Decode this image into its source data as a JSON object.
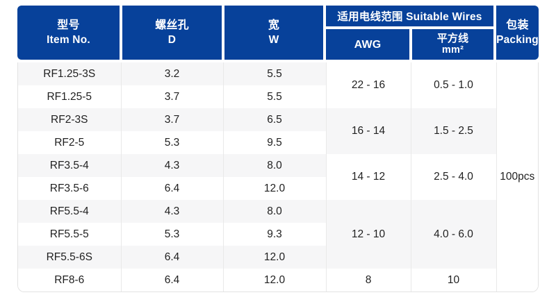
{
  "colors": {
    "header_bg": "#07419a",
    "header_text": "#ffffff",
    "row_shaded": "#f6f6f7",
    "row_plain": "#ffffff",
    "body_text": "#1f1f1f",
    "grid_line": "#e9e9e9",
    "outer_border": "#e2e2e2"
  },
  "header": {
    "item": {
      "zh": "型号",
      "en": "Item No."
    },
    "screw_hole": {
      "zh": "螺丝孔",
      "en": "D"
    },
    "width": {
      "zh": "宽",
      "en": "W"
    },
    "suitable_wires_group": "适用电线范围 Suitable Wires",
    "awg": "AWG",
    "sq_wire": {
      "zh": "平方线",
      "en": "mm²"
    },
    "packing": {
      "zh": "包装",
      "en": "Packing"
    }
  },
  "rows": [
    {
      "item": "RF1.25-3S",
      "d": "3.2",
      "w": "5.5"
    },
    {
      "item": "RF1.25-5",
      "d": "3.7",
      "w": "5.5"
    },
    {
      "item": "RF2-3S",
      "d": "3.7",
      "w": "6.5"
    },
    {
      "item": "RF2-5",
      "d": "5.3",
      "w": "9.5"
    },
    {
      "item": "RF3.5-4",
      "d": "4.3",
      "w": "8.0"
    },
    {
      "item": "RF3.5-6",
      "d": "6.4",
      "w": "12.0"
    },
    {
      "item": "RF5.5-4",
      "d": "4.3",
      "w": "8.0"
    },
    {
      "item": "RF5.5-5",
      "d": "5.3",
      "w": "9.3"
    },
    {
      "item": "RF5.5-6S",
      "d": "6.4",
      "w": "12.0"
    },
    {
      "item": "RF8-6",
      "d": "6.4",
      "w": "12.0"
    }
  ],
  "wire_groups": [
    {
      "awg": "22 - 16",
      "mm2": "0.5 - 1.0",
      "rows": 2
    },
    {
      "awg": "16 - 14",
      "mm2": "1.5 - 2.5",
      "rows": 2
    },
    {
      "awg": "14 - 12",
      "mm2": "2.5 - 4.0",
      "rows": 2
    },
    {
      "awg": "12 - 10",
      "mm2": "4.0 - 6.0",
      "rows": 3
    },
    {
      "awg": "8",
      "mm2": "10",
      "rows": 1
    }
  ],
  "packing_value": "100pcs"
}
